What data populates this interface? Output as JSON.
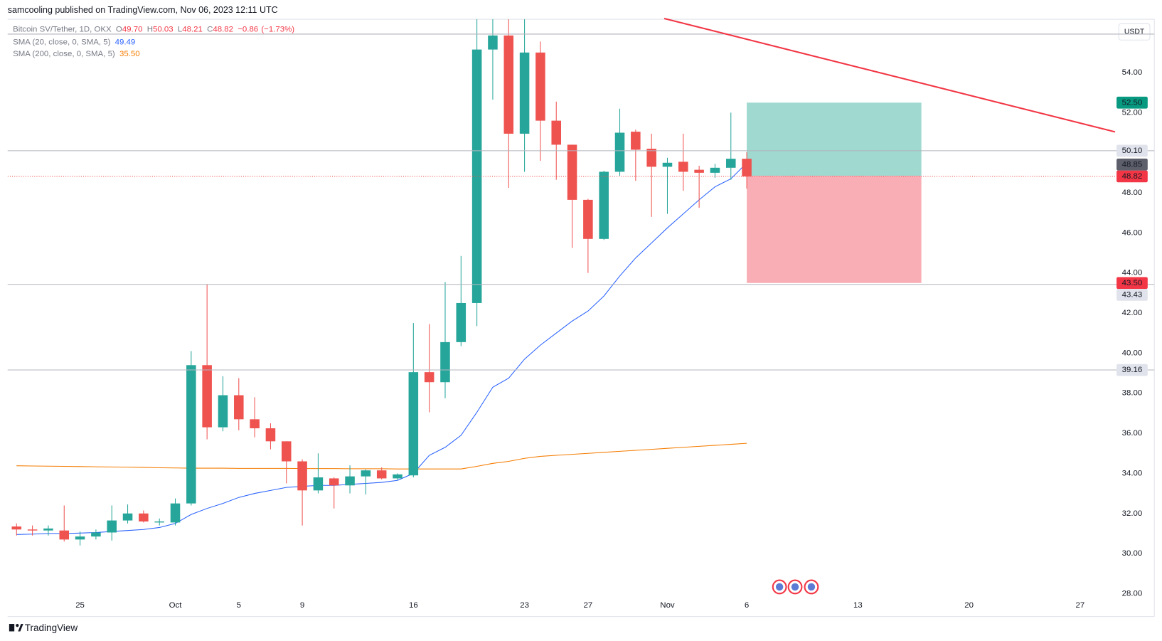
{
  "header": "samcooling published on TradingView.com, Nov 06, 2023 12:11 UTC",
  "footer": "TradingView",
  "chart_data": {
    "type": "candlestick",
    "currency": "USDT",
    "legend": {
      "fields": [
        {
          "key": "O",
          "value": 49.7,
          "label": "49.70"
        },
        {
          "key": "H",
          "value": 50.03,
          "label": "50.03"
        },
        {
          "key": "L",
          "value": 48.21,
          "label": "48.21"
        },
        {
          "key": "C",
          "value": 48.82,
          "label": "48.82"
        }
      ],
      "change": {
        "value": -0.86,
        "label": "−0.86"
      },
      "change_pct": {
        "value": -1.73,
        "label": "(−1.73%)"
      },
      "color": "#f23645"
    },
    "categories": [
      null,
      null,
      null,
      null,
      "25",
      null,
      null,
      null,
      null,
      null,
      "Oct",
      null,
      null,
      null,
      "5",
      null,
      null,
      null,
      "9",
      null,
      null,
      null,
      null,
      null,
      null,
      "16",
      null,
      null,
      null,
      null,
      null,
      null,
      "23",
      null,
      null,
      null,
      "27",
      null,
      null,
      null,
      null,
      "Nov",
      null,
      null,
      null,
      null,
      "6",
      null,
      null,
      null,
      null,
      null,
      null,
      "13",
      null,
      null,
      null,
      null,
      null,
      null,
      "20",
      null,
      null,
      null,
      null,
      null,
      null,
      "27",
      null,
      null
    ],
    "series": [
      {
        "name": "Bitcoin SV/Tether, 1D, OKX",
        "up_color": "#26a69a",
        "down_color": "#ef5350",
        "open": [
          31.35,
          31.2,
          31.15,
          31.15,
          30.7,
          30.85,
          31.05,
          31.65,
          32.0,
          31.55,
          31.55,
          32.5,
          39.4,
          36.3,
          37.9,
          36.7,
          36.25,
          35.6,
          34.6,
          33.15,
          33.75,
          33.4,
          33.85,
          34.15,
          33.75,
          33.9,
          39.05,
          38.55,
          40.55,
          42.5,
          55.15,
          55.85,
          50.95,
          55.0,
          51.6,
          50.4,
          47.65,
          45.7,
          49.05,
          51.05,
          50.2,
          49.3,
          49.55,
          49.15,
          49.0,
          49.25,
          49.7,
          null,
          null,
          null,
          null,
          null,
          null,
          null,
          null,
          null,
          null,
          null,
          null,
          null,
          null,
          null,
          null,
          null,
          null,
          null,
          null,
          null,
          null,
          null
        ],
        "high": [
          31.5,
          31.4,
          31.4,
          32.4,
          31.1,
          31.2,
          32.4,
          32.45,
          32.15,
          31.75,
          32.75,
          40.1,
          43.45,
          38.85,
          38.75,
          37.8,
          36.5,
          35.6,
          34.7,
          35.0,
          33.8,
          34.4,
          34.2,
          34.3,
          34.0,
          41.5,
          41.45,
          43.55,
          44.85,
          57.0,
          57.0,
          57.0,
          57.2,
          55.55,
          52.55,
          50.4,
          47.7,
          49.1,
          52.2,
          51.15,
          50.95,
          49.75,
          50.95,
          49.35,
          49.45,
          52.0,
          50.03,
          null,
          null,
          null,
          null,
          null,
          null,
          null,
          null,
          null,
          null,
          null,
          null,
          null,
          null,
          null,
          null,
          null,
          null,
          null,
          null,
          null,
          null,
          null
        ],
        "low": [
          30.9,
          30.9,
          30.9,
          30.6,
          30.4,
          30.7,
          30.65,
          31.5,
          31.55,
          31.4,
          31.4,
          32.4,
          35.7,
          36.1,
          36.15,
          35.8,
          35.2,
          33.5,
          31.4,
          33.0,
          32.25,
          33.0,
          32.95,
          33.7,
          33.65,
          33.8,
          37.05,
          37.75,
          40.35,
          41.35,
          52.65,
          48.25,
          49.05,
          49.6,
          48.65,
          45.25,
          44.0,
          45.65,
          48.85,
          48.6,
          46.8,
          46.95,
          48.1,
          47.25,
          48.75,
          48.65,
          48.21,
          null,
          null,
          null,
          null,
          null,
          null,
          null,
          null,
          null,
          null,
          null,
          null,
          null,
          null,
          null,
          null,
          null,
          null,
          null,
          null,
          null,
          null,
          null
        ],
        "close": [
          31.2,
          31.15,
          31.25,
          30.7,
          30.85,
          31.05,
          31.65,
          32.0,
          31.6,
          31.6,
          32.5,
          39.4,
          36.3,
          37.9,
          36.7,
          36.25,
          35.6,
          34.6,
          33.15,
          33.8,
          33.4,
          33.85,
          34.15,
          33.75,
          33.95,
          39.05,
          38.55,
          40.55,
          42.5,
          55.15,
          55.85,
          50.95,
          55.0,
          51.6,
          50.4,
          47.65,
          45.7,
          49.05,
          51.0,
          50.15,
          49.3,
          49.5,
          49.05,
          49.0,
          49.25,
          49.7,
          48.82,
          null,
          null,
          null,
          null,
          null,
          null,
          null,
          null,
          null,
          null,
          null,
          null,
          null,
          null,
          null,
          null,
          null,
          null,
          null,
          null,
          null,
          null,
          null
        ]
      },
      {
        "name": "SMA (20, close, 0, SMA, 5)",
        "color": "#2962ff",
        "legend_value": {
          "value": 49.49,
          "label": "49.49"
        },
        "values": [
          30.95,
          30.97,
          31.0,
          31.0,
          31.02,
          31.05,
          31.1,
          31.15,
          31.2,
          31.3,
          31.5,
          31.95,
          32.25,
          32.5,
          32.8,
          33.0,
          33.15,
          33.3,
          33.35,
          33.4,
          33.4,
          33.45,
          33.5,
          33.55,
          33.65,
          34.0,
          34.9,
          35.3,
          35.9,
          37.05,
          38.3,
          38.75,
          39.7,
          40.4,
          41.0,
          41.6,
          42.1,
          42.85,
          43.85,
          44.75,
          45.5,
          46.25,
          46.95,
          47.65,
          48.3,
          48.7,
          49.49,
          null,
          null,
          null,
          null,
          null,
          null,
          null,
          null,
          null,
          null,
          null,
          null,
          null,
          null,
          null,
          null,
          null,
          null,
          null,
          null,
          null,
          null,
          null
        ]
      },
      {
        "name": "SMA (200, close, 0, SMA, 5)",
        "color": "#f57c00",
        "legend_value": {
          "value": 35.5,
          "label": "35.50"
        },
        "values": [
          34.38,
          34.37,
          34.36,
          34.35,
          34.34,
          34.33,
          34.32,
          34.31,
          34.3,
          34.28,
          34.27,
          34.26,
          34.26,
          34.26,
          34.25,
          34.25,
          34.25,
          34.25,
          34.24,
          34.24,
          34.24,
          34.23,
          34.23,
          34.23,
          34.22,
          34.22,
          34.22,
          34.22,
          34.22,
          34.35,
          34.5,
          34.6,
          34.75,
          34.85,
          34.9,
          34.95,
          35.0,
          35.05,
          35.1,
          35.15,
          35.2,
          35.25,
          35.3,
          35.35,
          35.4,
          35.45,
          35.5,
          null,
          null,
          null,
          null,
          null,
          null,
          null,
          null,
          null,
          null,
          null,
          null,
          null,
          null,
          null,
          null,
          null,
          null,
          null,
          null,
          null,
          null,
          null
        ]
      }
    ],
    "ylim": [
      26.93,
      56.66
    ],
    "yticks": [
      {
        "value": 28,
        "label": "28.00"
      },
      {
        "value": 30,
        "label": "30.00"
      },
      {
        "value": 32,
        "label": "32.00"
      },
      {
        "value": 34,
        "label": "34.00"
      },
      {
        "value": 36,
        "label": "36.00"
      },
      {
        "value": 38,
        "label": "38.00"
      },
      {
        "value": 40,
        "label": "40.00"
      },
      {
        "value": 42,
        "label": "42.00"
      },
      {
        "value": 44,
        "label": "44.00"
      },
      {
        "value": 46,
        "label": "46.00"
      },
      {
        "value": 48,
        "label": "48.00"
      },
      {
        "value": 50,
        "label": "50.00"
      },
      {
        "value": 52,
        "label": "52.00"
      },
      {
        "value": 54,
        "label": "54.00"
      }
    ],
    "grid": false,
    "horizontal_lines": {
      "color": "#b2b5be",
      "values": [
        55.92,
        50.1,
        43.43,
        39.16
      ]
    },
    "trend_line": {
      "color": "#f23645",
      "points": [
        [
          40.8,
          56.7
        ],
        [
          69.2,
          51.04
        ]
      ]
    },
    "position": {
      "target": 52.5,
      "entry": 48.85,
      "stop": 43.5,
      "x_range": [
        46,
        57
      ],
      "profit_color": "#9fd9cf",
      "loss_color": "#f9aeb6"
    },
    "price_tags": [
      {
        "value": 52.5,
        "label": "52.50",
        "color": "#089981",
        "text_color": "#ffffff"
      },
      {
        "value": 50.1,
        "label": "50.10",
        "color": "#e0e3eb",
        "text_color": "#131722"
      },
      {
        "value": 48.82,
        "label": "48.82",
        "color": "#f23645",
        "text_color": "#ffffff"
      },
      {
        "value": 48.85,
        "label": "48.85",
        "color": "#5d606b",
        "text_color": "#ffffff"
      },
      {
        "value": 43.5,
        "label": "43.50",
        "color": "#f23645",
        "text_color": "#ffffff"
      },
      {
        "value": 43.43,
        "label": "43.43",
        "color": "#e0e3eb",
        "text_color": "#131722"
      },
      {
        "value": 39.16,
        "label": "39.16",
        "color": "#e0e3eb",
        "text_color": "#131722"
      }
    ]
  }
}
